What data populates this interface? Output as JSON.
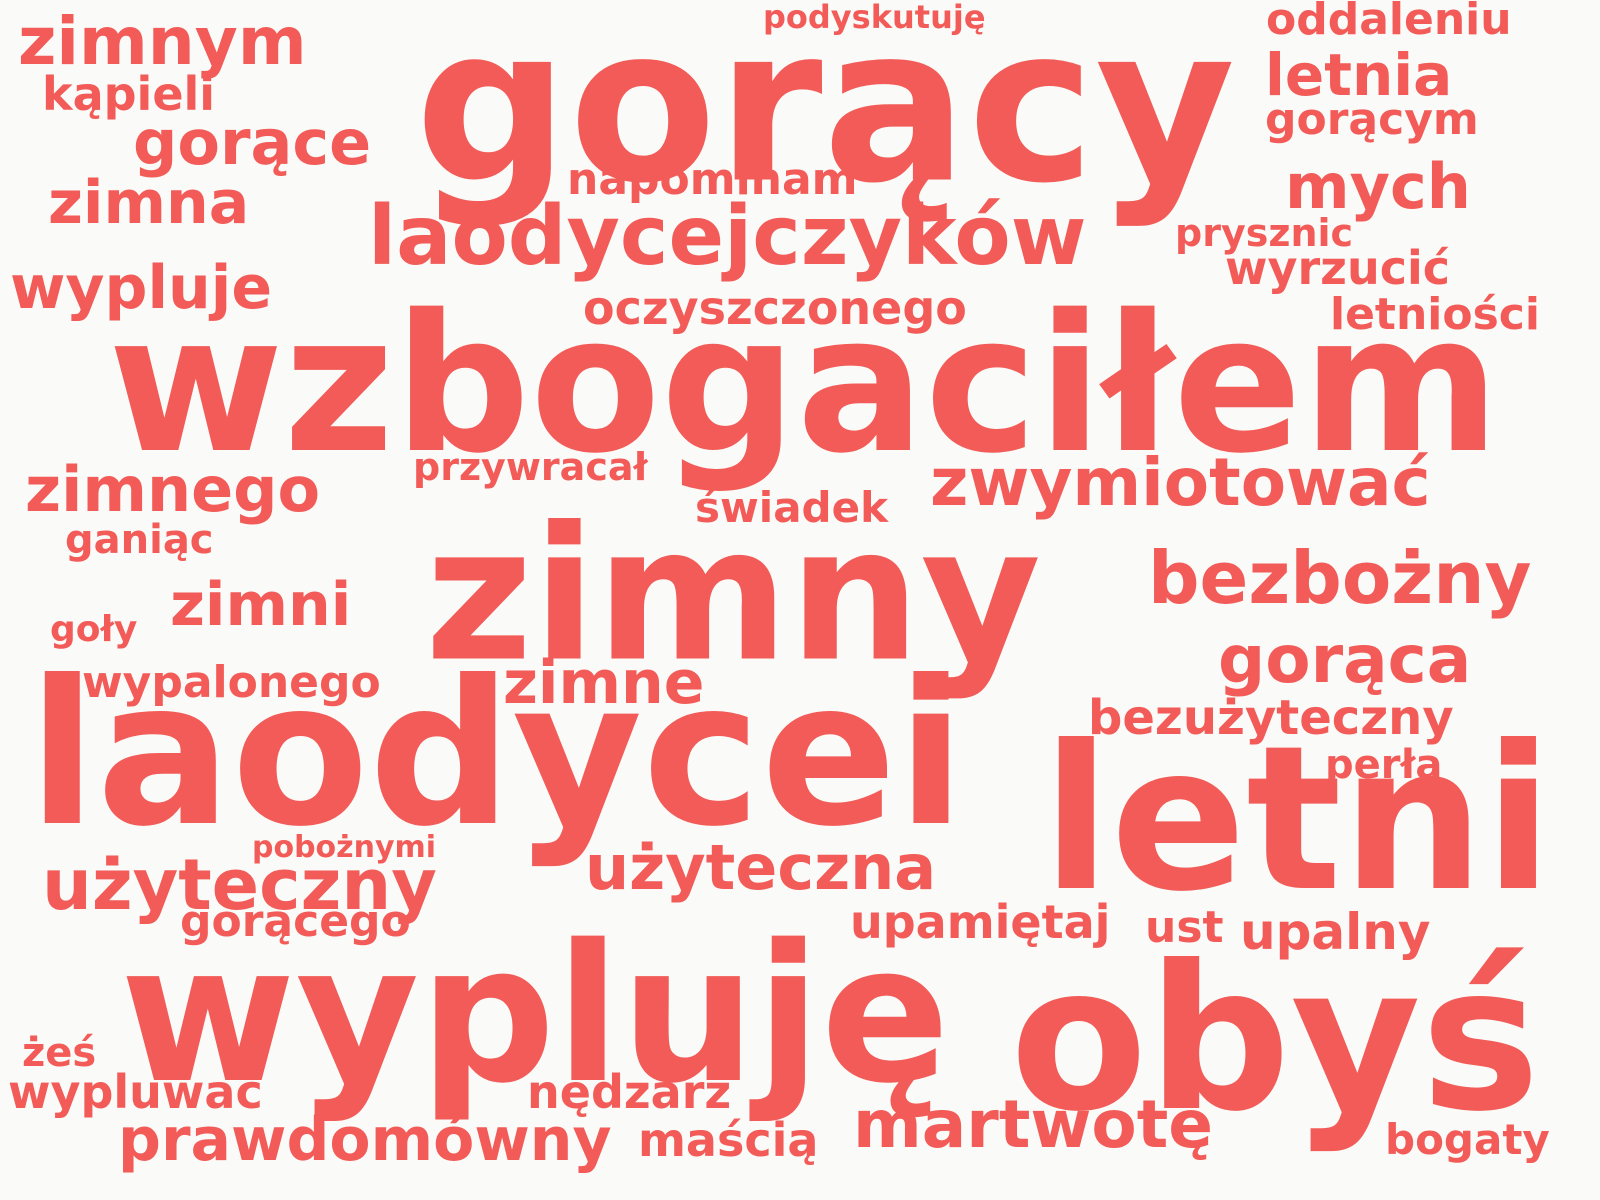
{
  "word_color": "#f25b57",
  "background_color": "#fafaf8",
  "words": [
    {
      "text": "gorący",
      "weight": 1.0
    },
    {
      "text": "wzbogaciłem",
      "weight": 0.98
    },
    {
      "text": "zimny",
      "weight": 0.97
    },
    {
      "text": "laodycei",
      "weight": 0.95
    },
    {
      "text": "letni",
      "weight": 0.93
    },
    {
      "text": "wypluję",
      "weight": 0.91
    },
    {
      "text": "obyś",
      "weight": 0.9
    },
    {
      "text": "laodycejczyków",
      "weight": 0.55
    },
    {
      "text": "bezbożny",
      "weight": 0.48
    },
    {
      "text": "użyteczny",
      "weight": 0.46
    },
    {
      "text": "zimnym",
      "weight": 0.44
    },
    {
      "text": "zwymiotować",
      "weight": 0.44
    },
    {
      "text": "gorąca",
      "weight": 0.44
    },
    {
      "text": "martwotę",
      "weight": 0.44
    },
    {
      "text": "gorące",
      "weight": 0.42
    },
    {
      "text": "zimnego",
      "weight": 0.42
    },
    {
      "text": "użyteczna",
      "weight": 0.42
    },
    {
      "text": "mych",
      "weight": 0.42
    },
    {
      "text": "zimna",
      "weight": 0.4
    },
    {
      "text": "wypluje",
      "weight": 0.4
    },
    {
      "text": "zimni",
      "weight": 0.4
    },
    {
      "text": "zimne",
      "weight": 0.4
    },
    {
      "text": "prawdomówny",
      "weight": 0.4
    },
    {
      "text": "letnia",
      "weight": 0.38
    },
    {
      "text": "upalny",
      "weight": 0.34
    },
    {
      "text": "bezużyteczny",
      "weight": 0.32
    },
    {
      "text": "oczyszczonego",
      "weight": 0.3
    },
    {
      "text": "wyrzucić",
      "weight": 0.3
    },
    {
      "text": "oddaleniu",
      "weight": 0.3
    },
    {
      "text": "gorącym",
      "weight": 0.3
    },
    {
      "text": "kąpieli",
      "weight": 0.3
    },
    {
      "text": "wypalonego",
      "weight": 0.3
    },
    {
      "text": "gorącego",
      "weight": 0.3
    },
    {
      "text": "nędzarz",
      "weight": 0.3
    },
    {
      "text": "maścią",
      "weight": 0.3
    },
    {
      "text": "wypluwać",
      "weight": 0.3
    },
    {
      "text": "upamiętaj",
      "weight": 0.3
    },
    {
      "text": "letniości",
      "weight": 0.28
    },
    {
      "text": "napominam",
      "weight": 0.28
    },
    {
      "text": "świadek",
      "weight": 0.28
    },
    {
      "text": "bogaty",
      "weight": 0.28
    },
    {
      "text": "perłą",
      "weight": 0.26
    },
    {
      "text": "ust",
      "weight": 0.26
    },
    {
      "text": "przywracał",
      "weight": 0.24
    },
    {
      "text": "ganiąc",
      "weight": 0.24
    },
    {
      "text": "prysznic",
      "weight": 0.24
    },
    {
      "text": "żeś",
      "weight": 0.24
    },
    {
      "text": "podyskutuję",
      "weight": 0.22
    },
    {
      "text": "goły",
      "weight": 0.22
    },
    {
      "text": "pobożnymi",
      "weight": 0.2
    }
  ]
}
